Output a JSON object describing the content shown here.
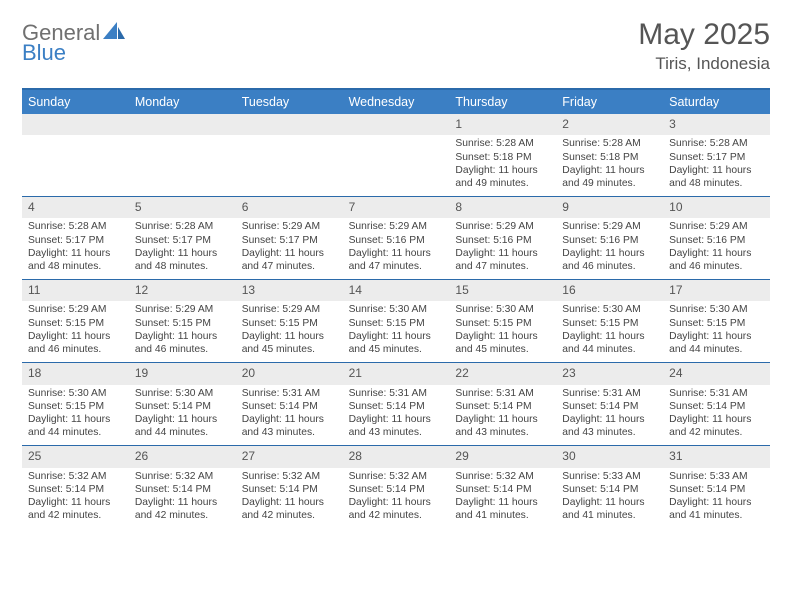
{
  "logo": {
    "word1": "General",
    "word2": "Blue"
  },
  "title": "May 2025",
  "location": "Tiris, Indonesia",
  "colors": {
    "header_bg": "#3b7fc4",
    "header_border": "#2b6aaa",
    "daynum_bg": "#ececec",
    "text": "#444444",
    "logo_gray": "#707070",
    "logo_blue": "#3b7fc4"
  },
  "weekdays": [
    "Sunday",
    "Monday",
    "Tuesday",
    "Wednesday",
    "Thursday",
    "Friday",
    "Saturday"
  ],
  "weeks": [
    [
      null,
      null,
      null,
      null,
      {
        "n": "1",
        "sr": "5:28 AM",
        "ss": "5:18 PM",
        "d": "11 hours and 49 minutes."
      },
      {
        "n": "2",
        "sr": "5:28 AM",
        "ss": "5:18 PM",
        "d": "11 hours and 49 minutes."
      },
      {
        "n": "3",
        "sr": "5:28 AM",
        "ss": "5:17 PM",
        "d": "11 hours and 48 minutes."
      }
    ],
    [
      {
        "n": "4",
        "sr": "5:28 AM",
        "ss": "5:17 PM",
        "d": "11 hours and 48 minutes."
      },
      {
        "n": "5",
        "sr": "5:28 AM",
        "ss": "5:17 PM",
        "d": "11 hours and 48 minutes."
      },
      {
        "n": "6",
        "sr": "5:29 AM",
        "ss": "5:17 PM",
        "d": "11 hours and 47 minutes."
      },
      {
        "n": "7",
        "sr": "5:29 AM",
        "ss": "5:16 PM",
        "d": "11 hours and 47 minutes."
      },
      {
        "n": "8",
        "sr": "5:29 AM",
        "ss": "5:16 PM",
        "d": "11 hours and 47 minutes."
      },
      {
        "n": "9",
        "sr": "5:29 AM",
        "ss": "5:16 PM",
        "d": "11 hours and 46 minutes."
      },
      {
        "n": "10",
        "sr": "5:29 AM",
        "ss": "5:16 PM",
        "d": "11 hours and 46 minutes."
      }
    ],
    [
      {
        "n": "11",
        "sr": "5:29 AM",
        "ss": "5:15 PM",
        "d": "11 hours and 46 minutes."
      },
      {
        "n": "12",
        "sr": "5:29 AM",
        "ss": "5:15 PM",
        "d": "11 hours and 46 minutes."
      },
      {
        "n": "13",
        "sr": "5:29 AM",
        "ss": "5:15 PM",
        "d": "11 hours and 45 minutes."
      },
      {
        "n": "14",
        "sr": "5:30 AM",
        "ss": "5:15 PM",
        "d": "11 hours and 45 minutes."
      },
      {
        "n": "15",
        "sr": "5:30 AM",
        "ss": "5:15 PM",
        "d": "11 hours and 45 minutes."
      },
      {
        "n": "16",
        "sr": "5:30 AM",
        "ss": "5:15 PM",
        "d": "11 hours and 44 minutes."
      },
      {
        "n": "17",
        "sr": "5:30 AM",
        "ss": "5:15 PM",
        "d": "11 hours and 44 minutes."
      }
    ],
    [
      {
        "n": "18",
        "sr": "5:30 AM",
        "ss": "5:15 PM",
        "d": "11 hours and 44 minutes."
      },
      {
        "n": "19",
        "sr": "5:30 AM",
        "ss": "5:14 PM",
        "d": "11 hours and 44 minutes."
      },
      {
        "n": "20",
        "sr": "5:31 AM",
        "ss": "5:14 PM",
        "d": "11 hours and 43 minutes."
      },
      {
        "n": "21",
        "sr": "5:31 AM",
        "ss": "5:14 PM",
        "d": "11 hours and 43 minutes."
      },
      {
        "n": "22",
        "sr": "5:31 AM",
        "ss": "5:14 PM",
        "d": "11 hours and 43 minutes."
      },
      {
        "n": "23",
        "sr": "5:31 AM",
        "ss": "5:14 PM",
        "d": "11 hours and 43 minutes."
      },
      {
        "n": "24",
        "sr": "5:31 AM",
        "ss": "5:14 PM",
        "d": "11 hours and 42 minutes."
      }
    ],
    [
      {
        "n": "25",
        "sr": "5:32 AM",
        "ss": "5:14 PM",
        "d": "11 hours and 42 minutes."
      },
      {
        "n": "26",
        "sr": "5:32 AM",
        "ss": "5:14 PM",
        "d": "11 hours and 42 minutes."
      },
      {
        "n": "27",
        "sr": "5:32 AM",
        "ss": "5:14 PM",
        "d": "11 hours and 42 minutes."
      },
      {
        "n": "28",
        "sr": "5:32 AM",
        "ss": "5:14 PM",
        "d": "11 hours and 42 minutes."
      },
      {
        "n": "29",
        "sr": "5:32 AM",
        "ss": "5:14 PM",
        "d": "11 hours and 41 minutes."
      },
      {
        "n": "30",
        "sr": "5:33 AM",
        "ss": "5:14 PM",
        "d": "11 hours and 41 minutes."
      },
      {
        "n": "31",
        "sr": "5:33 AM",
        "ss": "5:14 PM",
        "d": "11 hours and 41 minutes."
      }
    ]
  ],
  "labels": {
    "sunrise": "Sunrise: ",
    "sunset": "Sunset: ",
    "daylight": "Daylight: "
  }
}
